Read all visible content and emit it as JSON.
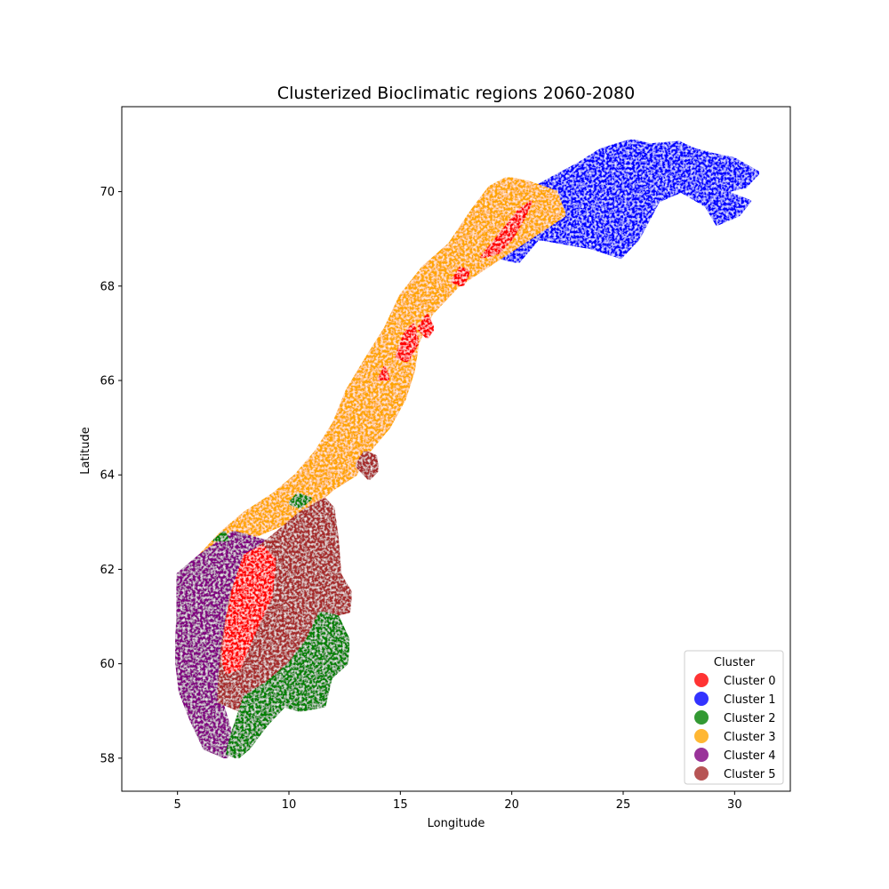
{
  "chart_data": {
    "type": "scatter",
    "title": "Clusterized Bioclimatic regions 2060-2080",
    "xlabel": "Longitude",
    "ylabel": "Latitude",
    "xlim": [
      2.5,
      32.5
    ],
    "ylim": [
      57.3,
      71.8
    ],
    "xticks": [
      5,
      10,
      15,
      20,
      25,
      30
    ],
    "yticks": [
      58,
      60,
      62,
      64,
      66,
      68,
      70
    ],
    "grid": false,
    "legend": {
      "title": "Cluster",
      "placement": "lower-right",
      "entries": [
        "Cluster 0",
        "Cluster 1",
        "Cluster 2",
        "Cluster 3",
        "Cluster 4",
        "Cluster 5"
      ]
    },
    "colors": {
      "Cluster 0": "#ff0000",
      "Cluster 1": "#0000ff",
      "Cluster 2": "#008000",
      "Cluster 3": "#ffa500",
      "Cluster 4": "#800080",
      "Cluster 5": "#a52a2a"
    },
    "series": [
      {
        "name": "Cluster 1",
        "regions": [
          [
            [
              19.8,
              69.2
            ],
            [
              20.3,
              69.9
            ],
            [
              21.8,
              70.3
            ],
            [
              23.0,
              70.6
            ],
            [
              24.0,
              70.9
            ],
            [
              25.4,
              71.1
            ],
            [
              26.2,
              71.0
            ],
            [
              27.5,
              71.05
            ],
            [
              28.2,
              70.9
            ],
            [
              29.0,
              70.8
            ],
            [
              30.0,
              70.7
            ],
            [
              31.1,
              70.4
            ],
            [
              30.5,
              70.1
            ],
            [
              29.6,
              70.0
            ],
            [
              30.7,
              69.8
            ],
            [
              30.2,
              69.5
            ],
            [
              29.2,
              69.3
            ],
            [
              28.7,
              69.7
            ],
            [
              27.6,
              70.0
            ],
            [
              26.6,
              69.8
            ],
            [
              25.7,
              69.0
            ],
            [
              24.9,
              68.6
            ],
            [
              23.6,
              68.8
            ],
            [
              22.4,
              68.9
            ],
            [
              21.2,
              69.0
            ],
            [
              20.3,
              68.5
            ],
            [
              19.4,
              68.6
            ],
            [
              18.9,
              68.9
            ]
          ]
        ]
      },
      {
        "name": "Cluster 3",
        "regions": [
          [
            [
              6.0,
              62.3
            ],
            [
              7.0,
              62.8
            ],
            [
              8.0,
              63.2
            ],
            [
              9.3,
              63.6
            ],
            [
              10.3,
              64.0
            ],
            [
              11.2,
              64.5
            ],
            [
              12.0,
              65.1
            ],
            [
              12.6,
              65.8
            ],
            [
              13.5,
              66.5
            ],
            [
              14.3,
              67.1
            ],
            [
              15.0,
              67.8
            ],
            [
              16.0,
              68.4
            ],
            [
              17.2,
              68.9
            ],
            [
              18.2,
              69.6
            ],
            [
              19.0,
              70.1
            ],
            [
              19.8,
              70.3
            ],
            [
              20.8,
              70.2
            ],
            [
              22.0,
              70.0
            ],
            [
              22.4,
              69.5
            ],
            [
              20.8,
              69.0
            ],
            [
              19.2,
              68.5
            ],
            [
              17.6,
              68.0
            ],
            [
              16.4,
              67.4
            ],
            [
              15.8,
              66.8
            ],
            [
              15.6,
              66.2
            ],
            [
              15.2,
              65.6
            ],
            [
              14.5,
              65.0
            ],
            [
              13.6,
              64.5
            ],
            [
              13.0,
              64.0
            ],
            [
              12.0,
              63.7
            ],
            [
              11.0,
              63.3
            ],
            [
              10.0,
              63.0
            ],
            [
              9.0,
              62.8
            ],
            [
              8.0,
              62.6
            ],
            [
              7.0,
              62.5
            ],
            [
              6.3,
              62.1
            ]
          ]
        ]
      },
      {
        "name": "Cluster 4",
        "regions": [
          [
            [
              5.0,
              61.9
            ],
            [
              6.0,
              62.3
            ],
            [
              7.5,
              62.8
            ],
            [
              9.0,
              62.6
            ],
            [
              8.0,
              62.2
            ],
            [
              7.3,
              61.5
            ],
            [
              7.0,
              60.6
            ],
            [
              6.8,
              59.5
            ],
            [
              7.5,
              58.4
            ],
            [
              7.2,
              58.0
            ],
            [
              6.2,
              58.2
            ],
            [
              5.6,
              58.8
            ],
            [
              5.1,
              59.4
            ],
            [
              4.9,
              60.2
            ],
            [
              5.0,
              61.0
            ]
          ]
        ]
      },
      {
        "name": "Cluster 5",
        "regions": [
          [
            [
              6.8,
              59.2
            ],
            [
              7.0,
              60.4
            ],
            [
              7.4,
              61.5
            ],
            [
              8.2,
              62.3
            ],
            [
              9.5,
              62.8
            ],
            [
              10.5,
              63.2
            ],
            [
              11.6,
              63.5
            ],
            [
              12.0,
              63.3
            ],
            [
              12.2,
              62.6
            ],
            [
              12.3,
              61.9
            ],
            [
              12.8,
              61.5
            ],
            [
              12.7,
              61.1
            ],
            [
              11.9,
              61.0
            ],
            [
              11.0,
              60.7
            ],
            [
              10.2,
              60.1
            ],
            [
              9.5,
              59.8
            ],
            [
              8.6,
              59.2
            ],
            [
              7.8,
              59.0
            ]
          ],
          [
            [
              13.0,
              64.2
            ],
            [
              13.4,
              64.5
            ],
            [
              13.9,
              64.4
            ],
            [
              14.0,
              64.1
            ],
            [
              13.6,
              63.9
            ]
          ]
        ]
      },
      {
        "name": "Cluster 0",
        "regions": [
          [
            [
              7.0,
              60.1
            ],
            [
              7.2,
              60.9
            ],
            [
              7.5,
              61.6
            ],
            [
              8.0,
              62.3
            ],
            [
              8.8,
              62.5
            ],
            [
              9.4,
              62.2
            ],
            [
              9.2,
              61.4
            ],
            [
              8.4,
              60.6
            ],
            [
              7.8,
              59.9
            ],
            [
              7.2,
              59.8
            ]
          ],
          [
            [
              14.8,
              66.5
            ],
            [
              15.2,
              67.0
            ],
            [
              15.6,
              67.2
            ],
            [
              15.8,
              66.8
            ],
            [
              15.3,
              66.4
            ]
          ],
          [
            [
              15.8,
              67.1
            ],
            [
              16.2,
              67.4
            ],
            [
              16.5,
              67.1
            ],
            [
              16.2,
              66.9
            ]
          ],
          [
            [
              17.3,
              68.1
            ],
            [
              17.7,
              68.4
            ],
            [
              18.1,
              68.3
            ],
            [
              17.8,
              68.0
            ]
          ],
          [
            [
              18.6,
              68.6
            ],
            [
              19.3,
              69.0
            ],
            [
              19.8,
              69.3
            ],
            [
              20.3,
              69.6
            ],
            [
              20.9,
              69.8
            ],
            [
              20.5,
              69.4
            ],
            [
              20.0,
              69.0
            ],
            [
              19.4,
              68.7
            ]
          ],
          [
            [
              14.0,
              66.0
            ],
            [
              14.3,
              66.3
            ],
            [
              14.5,
              66.0
            ]
          ]
        ]
      },
      {
        "name": "Cluster 2",
        "regions": [
          [
            [
              7.2,
              58.1
            ],
            [
              7.5,
              58.6
            ],
            [
              8.0,
              59.3
            ],
            [
              9.0,
              59.6
            ],
            [
              10.0,
              60.0
            ],
            [
              10.8,
              60.5
            ],
            [
              11.4,
              61.1
            ],
            [
              12.2,
              61.0
            ],
            [
              12.7,
              60.5
            ],
            [
              12.6,
              60.0
            ],
            [
              11.9,
              59.7
            ],
            [
              11.6,
              59.1
            ],
            [
              10.5,
              59.0
            ],
            [
              9.8,
              59.1
            ],
            [
              9.0,
              58.7
            ],
            [
              8.2,
              58.2
            ],
            [
              7.7,
              58.0
            ]
          ],
          [
            [
              10.0,
              63.4
            ],
            [
              10.4,
              63.6
            ],
            [
              11.0,
              63.5
            ],
            [
              10.5,
              63.3
            ]
          ],
          [
            [
              6.6,
              62.6
            ],
            [
              7.1,
              62.8
            ],
            [
              7.3,
              62.6
            ]
          ]
        ]
      }
    ]
  }
}
